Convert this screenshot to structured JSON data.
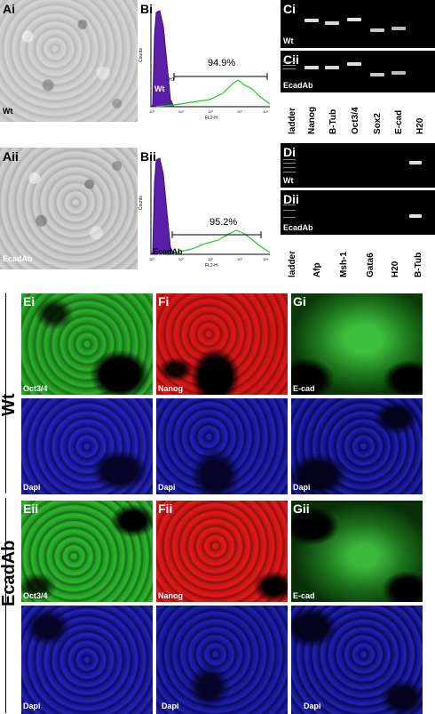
{
  "A": {
    "i": {
      "panel_label": "Ai",
      "sample": "Wt"
    },
    "ii": {
      "panel_label": "Aii",
      "sample": "EcadAb"
    }
  },
  "B": {
    "i": {
      "panel_label": "Bi",
      "gate_label": "H1",
      "sample": "Wt",
      "percent": "94.9%",
      "y_axis": "Counts",
      "x_axis": "FL2-H"
    },
    "ii": {
      "panel_label": "Bii",
      "sample": "EcadAb",
      "percent": "95.2%",
      "y_axis": "Counts",
      "x_axis": "FL2-H"
    },
    "ticks": [
      "10⁰",
      "10¹",
      "10²",
      "10³",
      "10⁴"
    ]
  },
  "C": {
    "i": {
      "panel_label": "Ci",
      "sample": "Wt"
    },
    "ii": {
      "panel_label": "Cii",
      "sample": "EcadAb"
    },
    "lanes": [
      "ladder",
      "Nanog",
      "B-Tub",
      "Oct3/4",
      "Sox2",
      "E-cad",
      "H20"
    ]
  },
  "D": {
    "i": {
      "panel_label": "Di",
      "sample": "Wt"
    },
    "ii": {
      "panel_label": "Dii",
      "sample": "EcadAb"
    },
    "lanes": [
      "ladder",
      "Afp",
      "Msh-1",
      "Gata6",
      "H20",
      "B-Tub"
    ]
  },
  "rows": {
    "wt": "Wt",
    "ecad": "EcadAb"
  },
  "E": {
    "i": "Ei",
    "ii": "Eii",
    "marker": "Oct3/4",
    "dapi": "Dapi"
  },
  "F": {
    "i": "Fi",
    "ii": "Fii",
    "marker": "Nanog",
    "dapi": "Dapi"
  },
  "G": {
    "i": "Gi",
    "ii": "Gii",
    "marker": "E-cad",
    "dapi": "Dapi"
  },
  "colors": {
    "green": "#1fa51f",
    "red": "#d51818",
    "blue": "#1a1aa8",
    "purple": "#5b1ea8",
    "flow_green": "#22cc22"
  }
}
